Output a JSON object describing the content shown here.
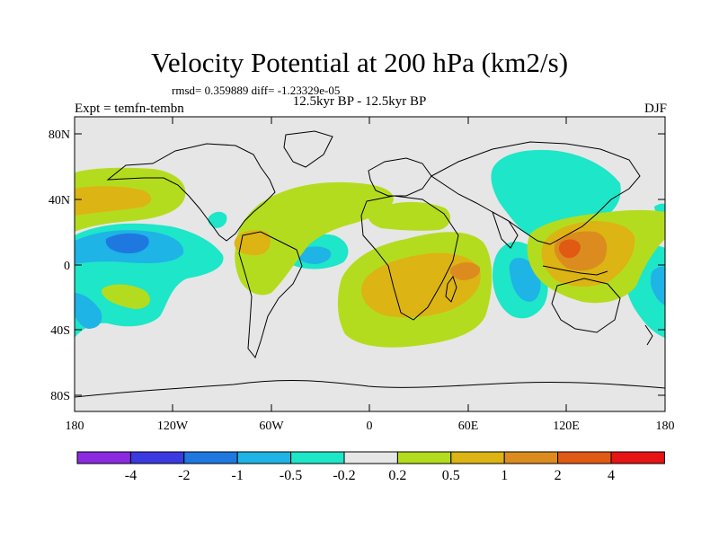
{
  "header": {
    "title": "Velocity Potential at 200 hPa (km2/s)",
    "stats": "rmsd= 0.359889 diff= -1.23329e-05",
    "subtitle": "12.5kyr BP - 12.5kyr BP",
    "expt": "Expt = temfn-tembn",
    "season": "DJF"
  },
  "map": {
    "lat_ticks": [
      {
        "lat": 80,
        "label": "80N"
      },
      {
        "lat": 40,
        "label": "40N"
      },
      {
        "lat": 0,
        "label": "0"
      },
      {
        "lat": -40,
        "label": "40S"
      },
      {
        "lat": -80,
        "label": "80S"
      }
    ],
    "lon_ticks": [
      {
        "lon": -180,
        "label": "180"
      },
      {
        "lon": -120,
        "label": "120W"
      },
      {
        "lon": -60,
        "label": "60W"
      },
      {
        "lon": 0,
        "label": "0"
      },
      {
        "lon": 60,
        "label": "60E"
      },
      {
        "lon": 120,
        "label": "120E"
      },
      {
        "lon": 180,
        "label": "180"
      }
    ]
  },
  "colorbar": {
    "colors": [
      "#8a2be2",
      "#3a3ae0",
      "#1e78e0",
      "#1eb4e6",
      "#1ee6c8",
      "#e6e6e6",
      "#b4dc1e",
      "#dcb414",
      "#dc8c1e",
      "#e05a14",
      "#e61414"
    ],
    "labels": [
      "-4",
      "-2",
      "-1",
      "-0.5",
      "-0.2",
      "0.2",
      "0.5",
      "1",
      "2",
      "4"
    ]
  },
  "palette": {
    "neutral": "#e6e6e6",
    "neg_weak": "#1ee6c8",
    "neg_mod": "#1eb4e6",
    "neg_strong": "#1e78e0",
    "pos_weak": "#b4dc1e",
    "pos_mod": "#dcb414",
    "pos_strong": "#dc8c1e",
    "pos_max": "#e05a14"
  }
}
